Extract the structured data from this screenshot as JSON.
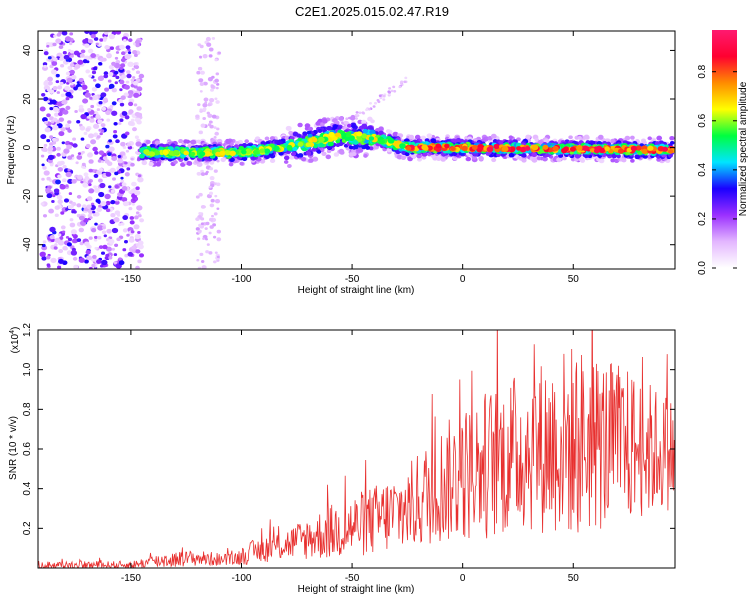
{
  "title": "C2E1.2025.015.02.47.R19",
  "chart_data": [
    {
      "type": "heatmap",
      "xlabel": "Height of straight line (km)",
      "ylabel": "Frequency (Hz)",
      "xlim": [
        -192,
        96
      ],
      "ylim": [
        -50,
        48
      ],
      "xticks": [
        -150,
        -100,
        -50,
        0,
        50
      ],
      "yticks": [
        -40,
        -20,
        0,
        20,
        40
      ],
      "colorbar": {
        "label": "Normalized spectral amplitude",
        "range": [
          0,
          0.97
        ],
        "ticks": [
          0.0,
          0.2,
          0.4,
          0.6,
          0.8
        ],
        "tick_labels": [
          "0.0",
          "0.2",
          "0.4",
          "0.6",
          "0.8"
        ],
        "colors": [
          "#ffffff",
          "#e3b6ff",
          "#9b30ff",
          "#1a00ff",
          "#00e5ff",
          "#00ff40",
          "#ffff00",
          "#ff8c00",
          "#ff0030",
          "#ff1a70"
        ]
      },
      "regions": [
        {
          "x_range": [
            -190,
            -145
          ],
          "y_range": [
            -50,
            48
          ],
          "amplitude": 0.12
        },
        {
          "x_range": [
            -120,
            -110
          ],
          "y_range": [
            -50,
            45
          ],
          "amplitude": 0.05
        },
        {
          "x_range": [
            -145,
            95
          ],
          "center_line": [
            [
              -145,
              -2
            ],
            [
              -100,
              -2
            ],
            [
              -80,
              0
            ],
            [
              -55,
              5
            ],
            [
              -40,
              4
            ],
            [
              -25,
              0
            ],
            [
              0,
              0
            ],
            [
              95,
              -1
            ]
          ],
          "amplitude": 0.9
        },
        {
          "x_range": [
            -70,
            -25
          ],
          "branch": [
            [
              -70,
              3
            ],
            [
              -50,
              12
            ],
            [
              -25,
              28
            ]
          ],
          "amplitude": 0.1
        }
      ]
    },
    {
      "type": "line",
      "xlabel": "Height of straight line (km)",
      "ylabel": "SNR (10 * v/v)",
      "y_multiplier": "(x10",
      "y_multiplier_exp": "4",
      "y_multiplier_close": ")",
      "xlim": [
        -192,
        96
      ],
      "ylim": [
        0,
        1.2
      ],
      "xticks": [
        -150,
        -100,
        -50,
        0,
        50
      ],
      "yticks": [
        0.2,
        0.4,
        0.6,
        0.8,
        1.0,
        1.2
      ],
      "ytick_labels": [
        "0.2",
        "0.4",
        "0.6",
        "0.8",
        "1.0",
        "1.2"
      ],
      "color": "#e8302f",
      "envelope": [
        {
          "x": -192,
          "mean": 0.015,
          "amp": 0.02
        },
        {
          "x": -150,
          "mean": 0.015,
          "amp": 0.02
        },
        {
          "x": -135,
          "mean": 0.04,
          "amp": 0.04
        },
        {
          "x": -120,
          "mean": 0.05,
          "amp": 0.04
        },
        {
          "x": -105,
          "mean": 0.04,
          "amp": 0.03
        },
        {
          "x": -95,
          "mean": 0.08,
          "amp": 0.06
        },
        {
          "x": -80,
          "mean": 0.12,
          "amp": 0.08
        },
        {
          "x": -60,
          "mean": 0.18,
          "amp": 0.14
        },
        {
          "x": -40,
          "mean": 0.24,
          "amp": 0.18
        },
        {
          "x": -25,
          "mean": 0.3,
          "amp": 0.22
        },
        {
          "x": -10,
          "mean": 0.42,
          "amp": 0.3
        },
        {
          "x": 10,
          "mean": 0.52,
          "amp": 0.38
        },
        {
          "x": 30,
          "mean": 0.6,
          "amp": 0.42
        },
        {
          "x": 50,
          "mean": 0.64,
          "amp": 0.5
        },
        {
          "x": 70,
          "mean": 0.62,
          "amp": 0.42
        },
        {
          "x": 96,
          "mean": 0.58,
          "amp": 0.28
        }
      ]
    }
  ]
}
